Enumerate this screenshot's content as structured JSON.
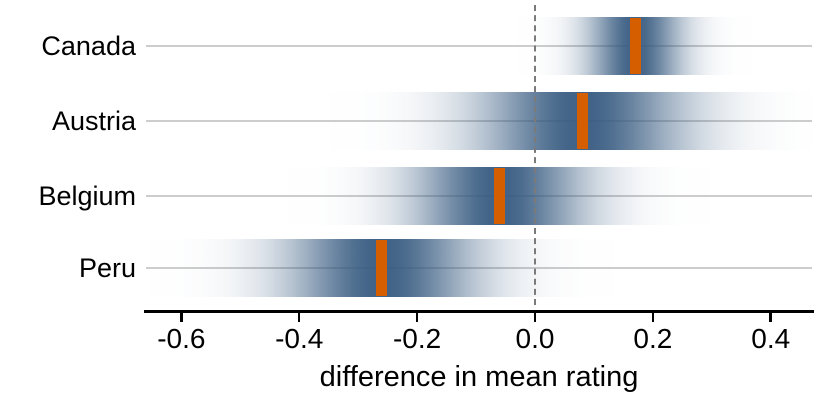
{
  "chart_data": {
    "type": "gradient-interval",
    "title": "",
    "xlabel": "difference in mean rating",
    "x_ticks": [
      -0.6,
      -0.4,
      -0.2,
      0.0,
      0.2,
      0.4
    ],
    "x_tick_labels": [
      "-0.6",
      "-0.4",
      "-0.2",
      "0.0",
      "0.2",
      "0.4"
    ],
    "xlim": [
      -0.66,
      0.47
    ],
    "reference_line": 0.0,
    "legend": "none",
    "grid": "horizontal-row-lines",
    "rows": [
      {
        "label": "Canada",
        "estimate": 0.17,
        "sd": 0.055
      },
      {
        "label": "Austria",
        "estimate": 0.08,
        "sd": 0.12
      },
      {
        "label": "Belgium",
        "estimate": -0.06,
        "sd": 0.1
      },
      {
        "label": "Peru",
        "estimate": -0.26,
        "sd": 0.11
      }
    ],
    "colors": {
      "band": "#365A80",
      "estimate": "#D55E00",
      "grid_line": "#CDCDCD",
      "reference_line": "#7A7A7A",
      "axis": "#000000",
      "text": "#000000"
    }
  }
}
